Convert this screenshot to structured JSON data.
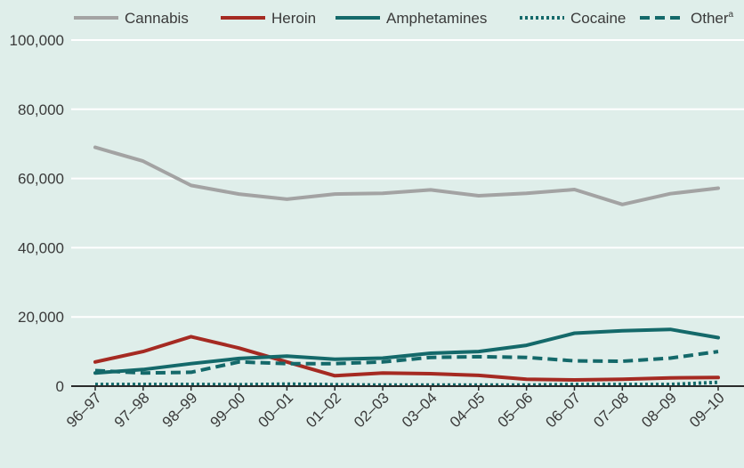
{
  "chart_data": {
    "type": "line",
    "title": "",
    "xlabel": "",
    "ylabel": "",
    "categories": [
      "96–97",
      "97–98",
      "98–99",
      "99–00",
      "00–01",
      "01–02",
      "02–03",
      "03–04",
      "04–05",
      "05–06",
      "06–07",
      "07–08",
      "08–09",
      "09–10"
    ],
    "ylim": [
      0,
      100000
    ],
    "yticks": [
      0,
      20000,
      40000,
      60000,
      80000,
      100000
    ],
    "ytick_labels": [
      "0",
      "20,000",
      "40,000",
      "60,000",
      "80,000",
      "100,000"
    ],
    "grid": true,
    "legend_position": "top",
    "series": [
      {
        "name": "Cannabis",
        "superscript": "",
        "color": "#a3a3a3",
        "dash": "solid",
        "values": [
          69000,
          65000,
          58000,
          55500,
          54000,
          55500,
          55700,
          56700,
          55000,
          55700,
          56800,
          52500,
          55600,
          57200
        ]
      },
      {
        "name": "Heroin",
        "superscript": "",
        "color": "#a52a22",
        "dash": "solid",
        "values": [
          7000,
          10000,
          14300,
          11000,
          7000,
          3000,
          3800,
          3600,
          3100,
          2000,
          1800,
          2000,
          2400,
          2500
        ]
      },
      {
        "name": "Amphetamines",
        "superscript": "",
        "color": "#14696a",
        "dash": "solid",
        "values": [
          3800,
          4800,
          6500,
          8000,
          8700,
          7800,
          8100,
          9500,
          10000,
          11800,
          15300,
          16000,
          16400,
          14000
        ]
      },
      {
        "name": "Cocaine",
        "superscript": "",
        "color": "#14696a",
        "dash": "dotted",
        "values": [
          500,
          500,
          500,
          400,
          600,
          400,
          300,
          300,
          300,
          300,
          500,
          500,
          500,
          1100
        ]
      },
      {
        "name": "Other",
        "superscript": "a",
        "color": "#14696a",
        "dash": "dashed",
        "values": [
          4500,
          3800,
          4000,
          7000,
          6500,
          6500,
          7000,
          8300,
          8500,
          8300,
          7300,
          7200,
          8100,
          10000
        ]
      }
    ]
  }
}
